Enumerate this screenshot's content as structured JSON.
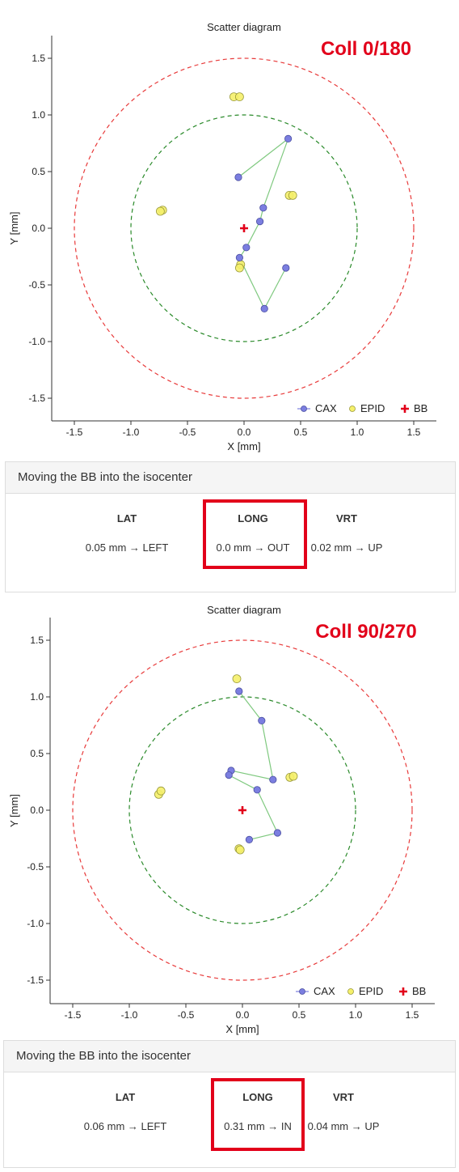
{
  "chart_data": [
    {
      "type": "scatter",
      "title": "Scatter diagram",
      "annotation": "Coll 0/180",
      "xlabel": "X [mm]",
      "ylabel": "Y [mm]",
      "xlim": [
        -1.7,
        1.7
      ],
      "ylim": [
        -1.7,
        1.7
      ],
      "xticks": [
        -1.5,
        -1.0,
        -0.5,
        0.0,
        0.5,
        1.0,
        1.5
      ],
      "yticks": [
        1.5,
        1.0,
        0.5,
        0.0,
        -0.5,
        -1.0,
        -1.5
      ],
      "circles": [
        {
          "radius": 1.5,
          "color": "#e83a3a",
          "style": "dashed"
        },
        {
          "radius": 1.0,
          "color": "#2a8a2a",
          "style": "dashed"
        }
      ],
      "legend": {
        "position": "bottom-right",
        "entries": [
          "CAX",
          "EPID",
          "BB"
        ]
      },
      "series": [
        {
          "name": "CAX",
          "color": "#7b7ee0",
          "line_color": "#7fc97f",
          "connected": true,
          "points": [
            [
              -0.05,
              0.45
            ],
            [
              0.39,
              0.79
            ],
            [
              0.17,
              0.18
            ],
            [
              0.14,
              0.06
            ],
            [
              0.02,
              -0.17
            ],
            [
              -0.04,
              -0.26
            ],
            [
              0.18,
              -0.71
            ],
            [
              0.37,
              -0.35
            ]
          ]
        },
        {
          "name": "EPID",
          "color": "#f5f06a",
          "connected": false,
          "points": [
            [
              -0.72,
              0.16
            ],
            [
              -0.74,
              0.15
            ],
            [
              -0.09,
              1.16
            ],
            [
              -0.04,
              1.16
            ],
            [
              0.4,
              0.29
            ],
            [
              0.43,
              0.29
            ],
            [
              -0.03,
              -0.32
            ],
            [
              -0.04,
              -0.35
            ]
          ]
        },
        {
          "name": "BB",
          "color": "#e2001a",
          "marker": "plus",
          "points": [
            [
              0.0,
              0.0
            ]
          ]
        }
      ]
    },
    {
      "type": "scatter",
      "title": "Scatter diagram",
      "annotation": "Coll 90/270",
      "xlabel": "X [mm]",
      "ylabel": "Y [mm]",
      "xlim": [
        -1.7,
        1.7
      ],
      "ylim": [
        -1.7,
        1.7
      ],
      "xticks": [
        -1.5,
        -1.0,
        -0.5,
        0.0,
        0.5,
        1.0,
        1.5
      ],
      "yticks": [
        1.5,
        1.0,
        0.5,
        0.0,
        -0.5,
        -1.0,
        -1.5
      ],
      "circles": [
        {
          "radius": 1.5,
          "color": "#e83a3a",
          "style": "dashed"
        },
        {
          "radius": 1.0,
          "color": "#2a8a2a",
          "style": "dashed"
        }
      ],
      "legend": {
        "position": "bottom-right",
        "entries": [
          "CAX",
          "EPID",
          "BB"
        ]
      },
      "series": [
        {
          "name": "CAX",
          "color": "#7b7ee0",
          "line_color": "#7fc97f",
          "connected": true,
          "points": [
            [
              -0.03,
              1.05
            ],
            [
              0.17,
              0.79
            ],
            [
              0.27,
              0.27
            ],
            [
              -0.1,
              0.35
            ],
            [
              -0.12,
              0.31
            ],
            [
              0.13,
              0.18
            ],
            [
              0.31,
              -0.2
            ],
            [
              0.06,
              -0.26
            ]
          ]
        },
        {
          "name": "EPID",
          "color": "#f5f06a",
          "connected": false,
          "points": [
            [
              -0.05,
              1.16
            ],
            [
              -0.74,
              0.14
            ],
            [
              -0.72,
              0.17
            ],
            [
              0.42,
              0.29
            ],
            [
              0.45,
              0.3
            ],
            [
              -0.03,
              -0.34
            ],
            [
              -0.02,
              -0.35
            ]
          ]
        },
        {
          "name": "BB",
          "color": "#e2001a",
          "marker": "plus",
          "points": [
            [
              0.0,
              0.0
            ]
          ]
        }
      ]
    }
  ],
  "panels": [
    {
      "heading": "Moving the BB into the isocenter",
      "columns": [
        {
          "label": "LAT",
          "value": "0.05 mm → LEFT"
        },
        {
          "label": "LONG",
          "value": "0.0 mm → OUT",
          "highlighted": true
        },
        {
          "label": "VRT",
          "value": "0.02 mm → UP"
        }
      ]
    },
    {
      "heading": "Moving the BB into the isocenter",
      "columns": [
        {
          "label": "LAT",
          "value": "0.06 mm → LEFT"
        },
        {
          "label": "LONG",
          "value": "0.31 mm → IN",
          "highlighted": true
        },
        {
          "label": "VRT",
          "value": "0.04 mm → UP"
        }
      ]
    }
  ]
}
